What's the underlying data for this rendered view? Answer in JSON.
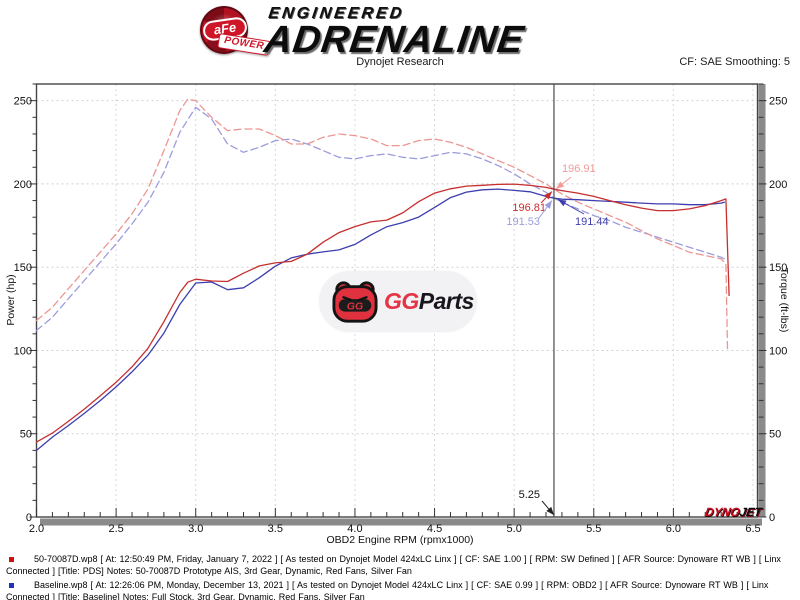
{
  "header": {
    "afe_text": "aFe",
    "afe_sub": "POWER",
    "brand_small": "ENGINEERED",
    "brand_large": "ADRENALINE",
    "subtitle": "Dynojet Research",
    "smoothing": "CF: SAE Smoothing: 5"
  },
  "watermark": {
    "gg": "GG",
    "parts": "Parts",
    "mascot_letters": "GG"
  },
  "dynojet_logo": {
    "part1": "DYNO",
    "part2": "JET"
  },
  "legend": [
    {
      "bullet_color": "#cc1111",
      "text": "50-70087D.wp8 [ At: 12:50:49 PM, Friday, January 7, 2022 ] [ As tested on Dynojet Model 424xLC Linx ] [ CF: SAE 1.00 ] [ RPM: SW Defined ] [ AFR Source: Dynoware RT WB ] [ Linx Connected ] [Title: PDS]  Notes: 50-70087D Prototype AIS, 3rd Gear, Dynamic, Red Fans, Silver Fan"
    },
    {
      "bullet_color": "#2233bb",
      "text": "Baseline.wp8 [ At: 12:26:06 PM, Monday, December 13, 2021 ] [ As tested on Dynojet Model 424xLC Linx ] [ CF: SAE 0.99 ] [ RPM: OBD2 ] [ AFR Source: Dynoware RT WB ] [ Linx Connected ] [Title: Baseline]  Notes: Full Stock, 3rd Gear, Dynamic, Red Fans, Silver Fan"
    }
  ],
  "chart_data": {
    "type": "line",
    "title": "Dynojet Research",
    "grid": true,
    "x_axis": {
      "label": "OBD2 Engine RPM (rpmx1000)",
      "min": 2.0,
      "max": 6.53,
      "major_step": 0.5,
      "minor_step": 0.1
    },
    "y_left": {
      "label": "Power (hp)",
      "min": 0,
      "max": 260,
      "major_step": 50,
      "minor_step": 10
    },
    "y_right": {
      "label": "Torque (ft-lbs)",
      "min": 0,
      "max": 260,
      "major_step": 50,
      "minor_step": 10
    },
    "cursor": {
      "rpm": 5.25,
      "label": "5.25",
      "readouts": [
        {
          "series": "torque-main",
          "value": "196.91",
          "color": "#f09c98"
        },
        {
          "series": "power-main",
          "value": "196.81",
          "color": "#c62f2f"
        },
        {
          "series": "torque-base",
          "value": "191.53",
          "color": "#9c9cdd"
        },
        {
          "series": "power-base",
          "value": "191.44",
          "color": "#3d3dae"
        }
      ]
    },
    "series": [
      {
        "id": "torque-base",
        "name": "Baseline Torque (ft-lbs)",
        "color": "#9c9cdd",
        "dash": true,
        "points": [
          [
            2.0,
            112
          ],
          [
            2.1,
            120
          ],
          [
            2.2,
            131
          ],
          [
            2.3,
            142
          ],
          [
            2.4,
            153
          ],
          [
            2.5,
            164
          ],
          [
            2.6,
            176
          ],
          [
            2.7,
            189
          ],
          [
            2.8,
            207
          ],
          [
            2.9,
            231
          ],
          [
            3.0,
            246
          ],
          [
            3.1,
            239
          ],
          [
            3.2,
            224
          ],
          [
            3.3,
            219
          ],
          [
            3.4,
            222
          ],
          [
            3.5,
            226
          ],
          [
            3.6,
            227
          ],
          [
            3.7,
            224
          ],
          [
            3.8,
            220
          ],
          [
            3.9,
            216
          ],
          [
            4.0,
            215
          ],
          [
            4.1,
            217
          ],
          [
            4.2,
            218
          ],
          [
            4.3,
            216
          ],
          [
            4.4,
            215
          ],
          [
            4.5,
            217
          ],
          [
            4.6,
            219
          ],
          [
            4.7,
            218
          ],
          [
            4.8,
            215
          ],
          [
            4.9,
            211
          ],
          [
            5.0,
            206
          ],
          [
            5.1,
            200
          ],
          [
            5.2,
            195
          ],
          [
            5.25,
            191.53
          ],
          [
            5.3,
            189
          ],
          [
            5.4,
            185
          ],
          [
            5.5,
            181
          ],
          [
            5.6,
            178
          ],
          [
            5.7,
            174
          ],
          [
            5.8,
            171
          ],
          [
            5.9,
            168
          ],
          [
            6.0,
            165
          ],
          [
            6.1,
            162
          ],
          [
            6.2,
            159
          ],
          [
            6.3,
            156
          ],
          [
            6.32,
            155
          ]
        ]
      },
      {
        "id": "torque-main",
        "name": "50-70087D Torque (ft-lbs)",
        "color": "#ec9692",
        "dash": true,
        "points": [
          [
            2.0,
            118
          ],
          [
            2.1,
            126
          ],
          [
            2.2,
            137
          ],
          [
            2.3,
            148
          ],
          [
            2.4,
            159
          ],
          [
            2.5,
            170
          ],
          [
            2.6,
            182
          ],
          [
            2.7,
            197
          ],
          [
            2.8,
            220
          ],
          [
            2.9,
            244
          ],
          [
            2.95,
            251
          ],
          [
            3.0,
            250
          ],
          [
            3.1,
            240
          ],
          [
            3.2,
            232
          ],
          [
            3.3,
            233
          ],
          [
            3.4,
            233
          ],
          [
            3.5,
            229
          ],
          [
            3.6,
            224
          ],
          [
            3.7,
            224
          ],
          [
            3.8,
            228
          ],
          [
            3.9,
            230
          ],
          [
            4.0,
            229
          ],
          [
            4.1,
            227
          ],
          [
            4.2,
            223
          ],
          [
            4.3,
            223
          ],
          [
            4.4,
            226
          ],
          [
            4.5,
            227
          ],
          [
            4.6,
            225
          ],
          [
            4.7,
            222
          ],
          [
            4.8,
            218
          ],
          [
            4.9,
            214
          ],
          [
            5.0,
            210
          ],
          [
            5.1,
            205
          ],
          [
            5.2,
            200
          ],
          [
            5.25,
            196.91
          ],
          [
            5.3,
            194
          ],
          [
            5.4,
            189
          ],
          [
            5.5,
            185
          ],
          [
            5.6,
            181
          ],
          [
            5.7,
            177
          ],
          [
            5.8,
            172
          ],
          [
            5.9,
            167
          ],
          [
            6.0,
            163
          ],
          [
            6.1,
            159
          ],
          [
            6.2,
            157
          ],
          [
            6.3,
            155
          ],
          [
            6.33,
            152
          ],
          [
            6.34,
            101
          ]
        ]
      },
      {
        "id": "power-base",
        "name": "Baseline Power (hp)",
        "color": "#3d3dae",
        "dash": false,
        "points": [
          [
            2.0,
            40
          ],
          [
            2.05,
            44
          ],
          [
            2.1,
            48
          ],
          [
            2.2,
            54.9
          ],
          [
            2.3,
            62.2
          ],
          [
            2.4,
            69.9
          ],
          [
            2.5,
            78.1
          ],
          [
            2.6,
            87.1
          ],
          [
            2.7,
            97.2
          ],
          [
            2.8,
            110.4
          ],
          [
            2.9,
            127.6
          ],
          [
            3.0,
            140.5
          ],
          [
            3.1,
            141.1
          ],
          [
            3.2,
            136.5
          ],
          [
            3.3,
            137.6
          ],
          [
            3.4,
            143.7
          ],
          [
            3.5,
            150.6
          ],
          [
            3.6,
            155.6
          ],
          [
            3.7,
            157.8
          ],
          [
            3.8,
            159.2
          ],
          [
            3.9,
            160.4
          ],
          [
            4.0,
            163.7
          ],
          [
            4.1,
            169.4
          ],
          [
            4.2,
            174.3
          ],
          [
            4.3,
            176.8
          ],
          [
            4.4,
            180.1
          ],
          [
            4.5,
            185.9
          ],
          [
            4.6,
            191.8
          ],
          [
            4.7,
            195.1
          ],
          [
            4.8,
            196.5
          ],
          [
            4.9,
            196.9
          ],
          [
            5.0,
            196.1
          ],
          [
            5.1,
            195.3
          ],
          [
            5.2,
            192.5
          ],
          [
            5.25,
            191.44
          ],
          [
            5.3,
            190.8
          ],
          [
            5.4,
            190.5
          ],
          [
            5.5,
            190
          ],
          [
            5.6,
            189.5
          ],
          [
            5.7,
            189
          ],
          [
            5.8,
            188.5
          ],
          [
            5.9,
            188
          ],
          [
            6.0,
            188
          ],
          [
            6.1,
            187.5
          ],
          [
            6.2,
            187.5
          ],
          [
            6.3,
            188.5
          ],
          [
            6.32,
            189
          ]
        ]
      },
      {
        "id": "power-main",
        "name": "50-70087D Power (hp)",
        "color": "#c62f2f",
        "dash": false,
        "points": [
          [
            2.0,
            45
          ],
          [
            2.1,
            50.4
          ],
          [
            2.2,
            57.4
          ],
          [
            2.3,
            64.8
          ],
          [
            2.4,
            72.7
          ],
          [
            2.5,
            80.9
          ],
          [
            2.6,
            90.1
          ],
          [
            2.7,
            101.3
          ],
          [
            2.8,
            117.3
          ],
          [
            2.9,
            134.8
          ],
          [
            2.95,
            141
          ],
          [
            3.0,
            142.8
          ],
          [
            3.1,
            141.7
          ],
          [
            3.2,
            141.4
          ],
          [
            3.3,
            146.4
          ],
          [
            3.4,
            150.8
          ],
          [
            3.5,
            152.6
          ],
          [
            3.6,
            153.5
          ],
          [
            3.7,
            157.8
          ],
          [
            3.8,
            165
          ],
          [
            3.9,
            170.8
          ],
          [
            4.0,
            174.4
          ],
          [
            4.1,
            177.2
          ],
          [
            4.2,
            178.3
          ],
          [
            4.3,
            182.6
          ],
          [
            4.4,
            189.3
          ],
          [
            4.5,
            194.5
          ],
          [
            4.6,
            197.1
          ],
          [
            4.7,
            198.7
          ],
          [
            4.8,
            199.2
          ],
          [
            4.9,
            199.7
          ],
          [
            5.0,
            199.9
          ],
          [
            5.1,
            199.1
          ],
          [
            5.2,
            197.9
          ],
          [
            5.25,
            196.81
          ],
          [
            5.3,
            196
          ],
          [
            5.4,
            194.5
          ],
          [
            5.5,
            192.5
          ],
          [
            5.6,
            190
          ],
          [
            5.7,
            187.5
          ],
          [
            5.8,
            185.5
          ],
          [
            5.9,
            184
          ],
          [
            6.0,
            184
          ],
          [
            6.1,
            185
          ],
          [
            6.2,
            187
          ],
          [
            6.3,
            190
          ],
          [
            6.33,
            191
          ],
          [
            6.35,
            133
          ]
        ]
      }
    ]
  }
}
